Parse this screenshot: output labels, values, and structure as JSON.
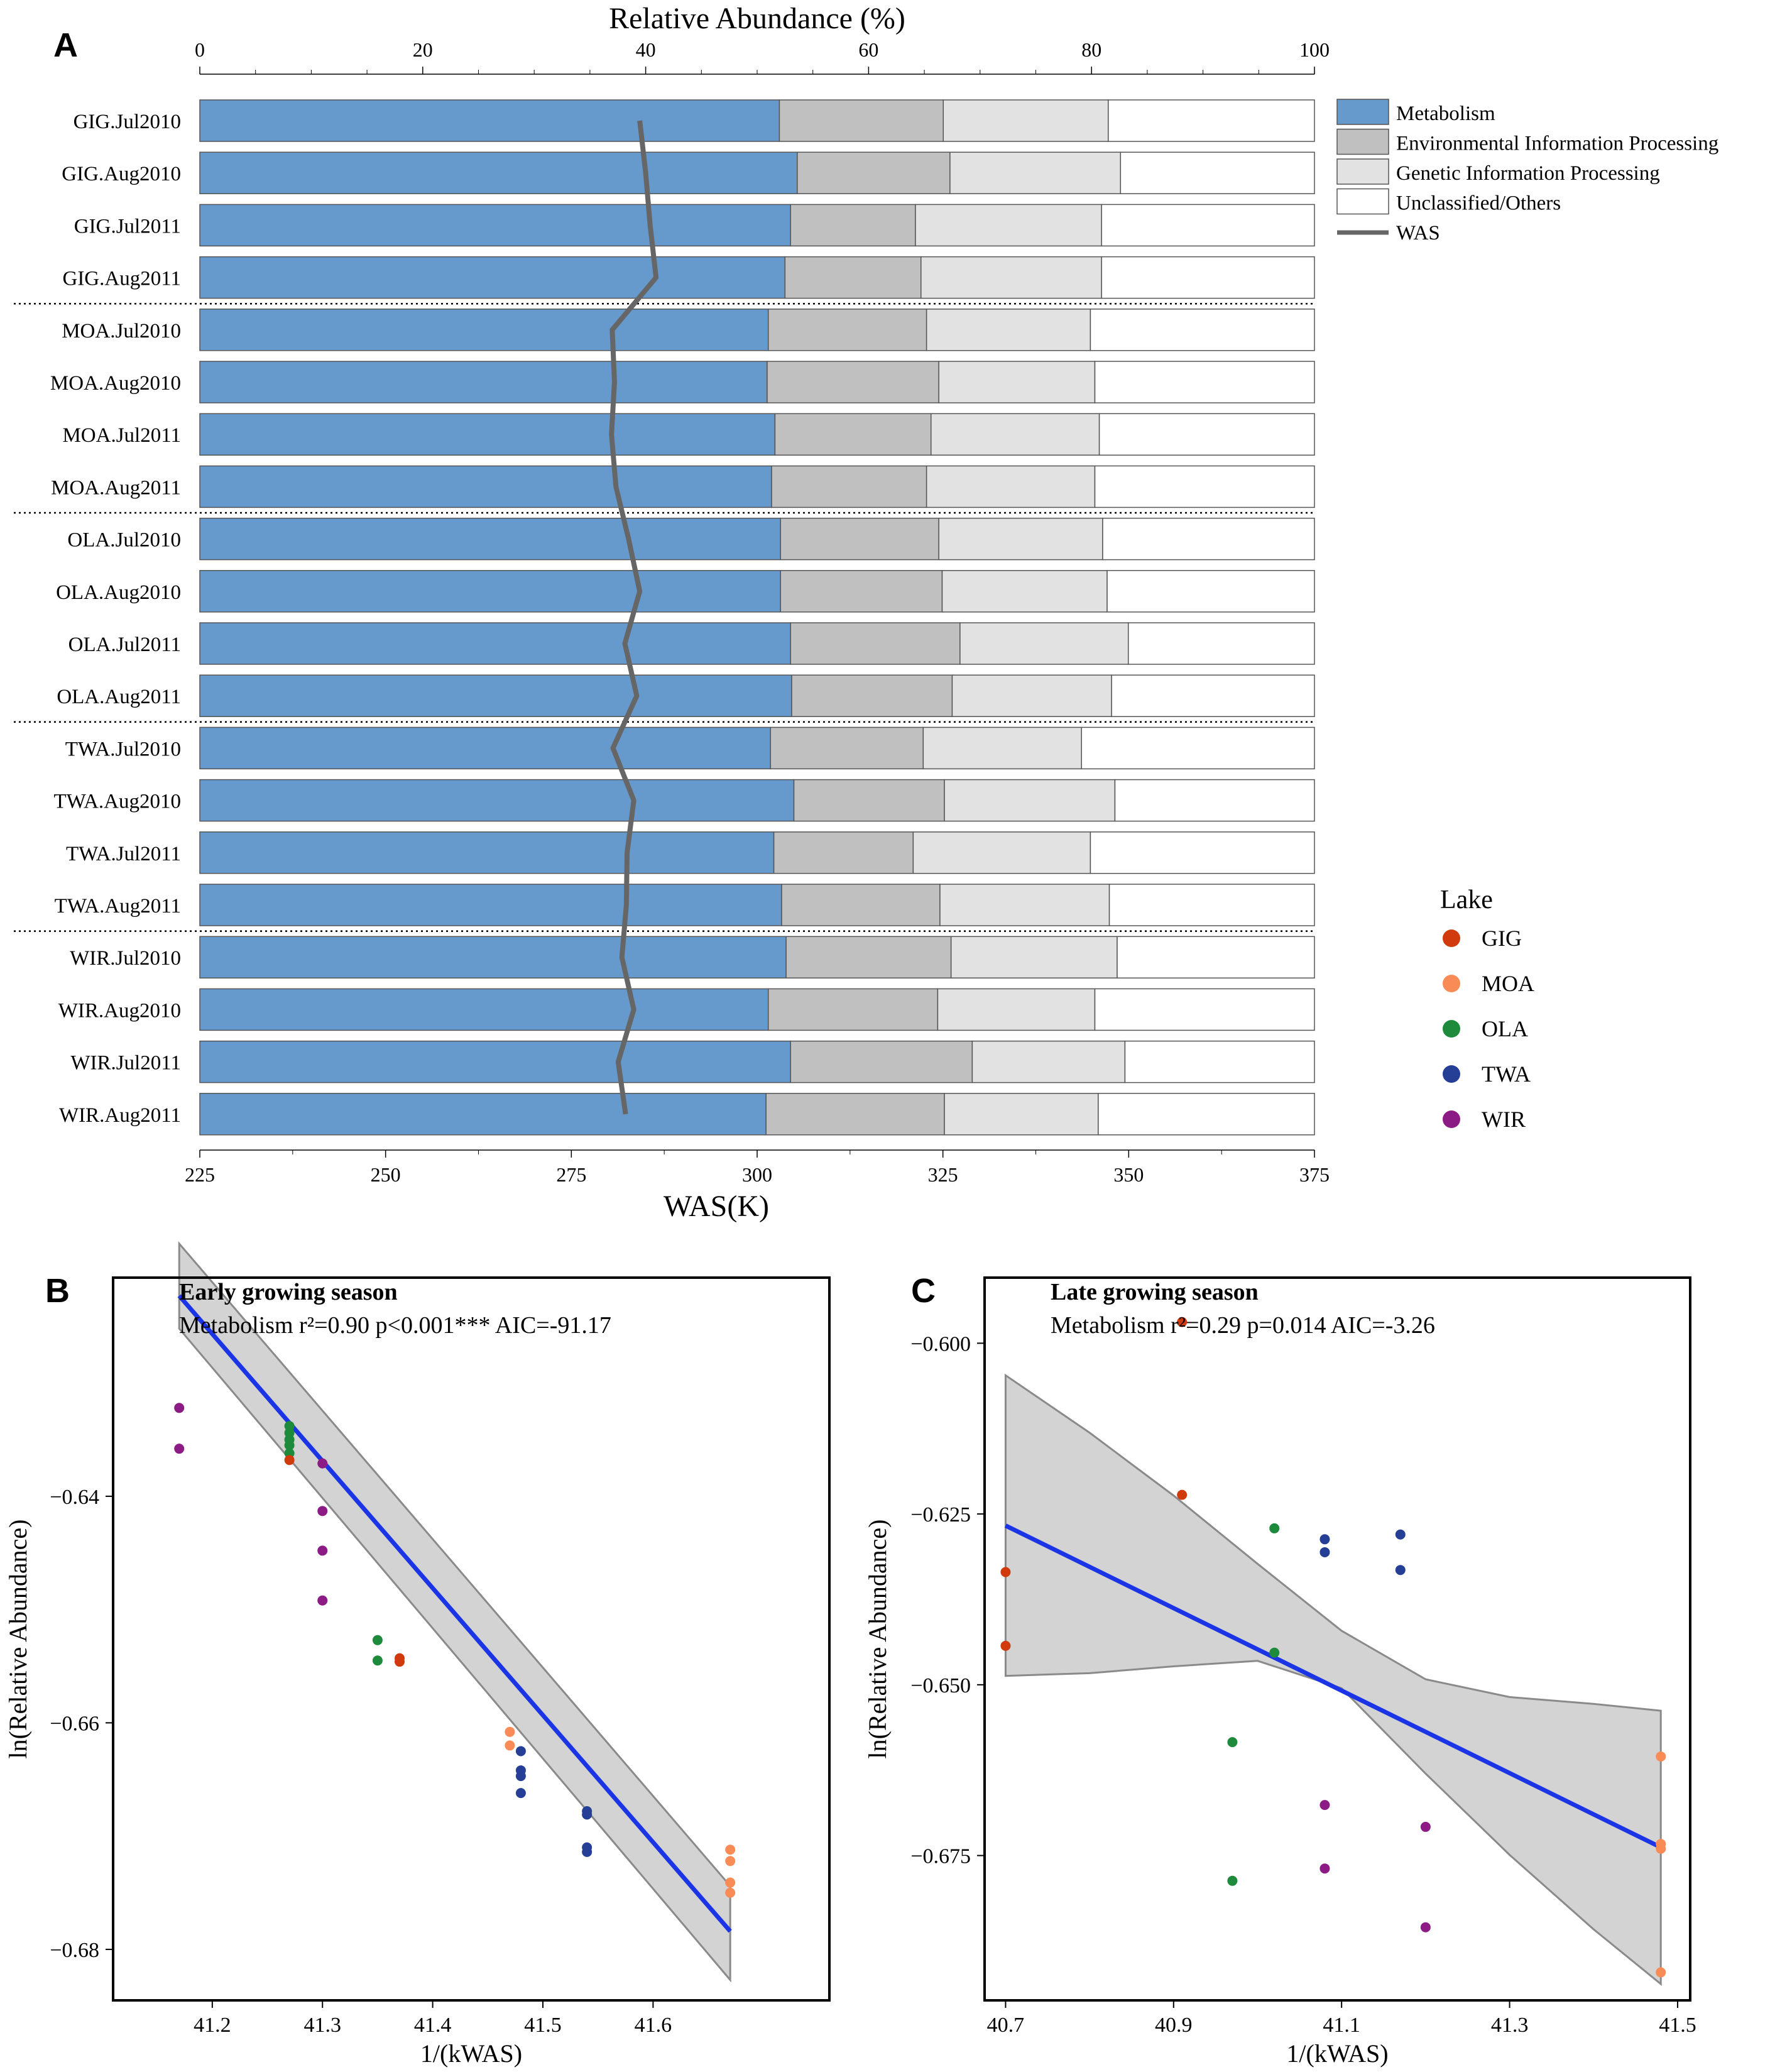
{
  "colors": {
    "metabolism": "#6699cc",
    "env": "#c0c0c0",
    "genetic": "#e2e2e2",
    "unclassified": "#ffffff",
    "was": "#666666",
    "fit_line": "#1a34e6",
    "band": "#d3d3d3",
    "lake": {
      "GIG": "#d13a0c",
      "MOA": "#f98c56",
      "OLA": "#1e8a3c",
      "TWA": "#243f95",
      "WIR": "#8c1b85"
    }
  },
  "chart_data": [
    {
      "panel": "A",
      "type": "bar",
      "stacked": true,
      "orientation": "horizontal",
      "title": "Relative Abundance (%)",
      "xlim": [
        0,
        100
      ],
      "xticks": [
        0,
        20,
        40,
        60,
        80,
        100
      ],
      "secondary_axis": {
        "label": "WAS(K)",
        "xlim": [
          225,
          375
        ],
        "xticks": [
          225,
          250,
          275,
          300,
          325,
          350,
          375
        ]
      },
      "categories": [
        "GIG.Jul2010",
        "GIG.Aug2010",
        "GIG.Jul2011",
        "GIG.Aug2011",
        "MOA.Jul2010",
        "MOA.Aug2010",
        "MOA.Jul2011",
        "MOA.Aug2011",
        "OLA.Jul2010",
        "OLA.Aug2010",
        "OLA.Jul2011",
        "OLA.Aug2011",
        "TWA.Jul2010",
        "TWA.Aug2010",
        "TWA.Jul2011",
        "TWA.Aug2011",
        "WIR.Jul2010",
        "WIR.Aug2010",
        "WIR.Jul2011",
        "WIR.Aug2011"
      ],
      "category_lakes": [
        "GIG",
        "GIG",
        "GIG",
        "GIG",
        "MOA",
        "MOA",
        "MOA",
        "MOA",
        "OLA",
        "OLA",
        "OLA",
        "OLA",
        "TWA",
        "TWA",
        "TWA",
        "TWA",
        "WIR",
        "WIR",
        "WIR",
        "WIR"
      ],
      "series": [
        {
          "name": "Metabolism",
          "values": [
            52.0,
            53.6,
            53.0,
            52.5,
            51.0,
            50.9,
            51.6,
            51.3,
            52.1,
            52.1,
            53.0,
            53.1,
            51.2,
            53.3,
            51.5,
            52.2,
            52.6,
            51.0,
            53.0,
            50.8
          ]
        },
        {
          "name": "Environmental Information Processing",
          "values": [
            14.7,
            13.7,
            11.2,
            12.2,
            14.2,
            15.4,
            14.0,
            13.9,
            14.2,
            14.5,
            15.2,
            14.4,
            13.7,
            13.5,
            12.5,
            14.2,
            14.8,
            15.2,
            16.3,
            16.0
          ]
        },
        {
          "name": "Genetic Information Processing",
          "values": [
            14.8,
            15.3,
            16.7,
            16.2,
            14.7,
            14.0,
            15.1,
            15.1,
            14.7,
            14.8,
            15.1,
            14.3,
            14.2,
            15.3,
            15.9,
            15.2,
            14.9,
            14.1,
            13.7,
            13.8
          ]
        },
        {
          "name": "Unclassified/Others",
          "values": [
            18.5,
            17.4,
            19.1,
            19.1,
            20.1,
            19.7,
            19.3,
            19.7,
            19.0,
            18.6,
            16.7,
            18.2,
            20.9,
            17.9,
            20.1,
            18.4,
            17.7,
            19.7,
            17.0,
            19.4
          ]
        }
      ],
      "was_line": {
        "name": "WAS",
        "values": [
          284.2,
          285.0,
          285.6,
          286.4,
          280.5,
          280.8,
          280.4,
          281.0,
          282.7,
          284.2,
          282.2,
          283.8,
          280.6,
          283.4,
          282.5,
          282.4,
          281.8,
          283.4,
          281.3,
          282.3
        ]
      },
      "legend": [
        "Metabolism",
        "Environmental Information Processing",
        "Genetic Information Processing",
        "Unclassified/Others",
        "WAS"
      ],
      "lake_legend_title": "Lake",
      "lake_legend": [
        "GIG",
        "MOA",
        "OLA",
        "TWA",
        "WIR"
      ]
    },
    {
      "panel": "B",
      "type": "scatter",
      "title": "Early growing season",
      "annotation": "Metabolism r²=0.90 p<0.001*** AIC=-91.17",
      "xlabel": "1/(kWAS)",
      "ylabel": "ln(Relative Abundance)",
      "xlim": [
        41.11,
        41.76
      ],
      "ylim": [
        -0.6845,
        -0.6207
      ],
      "xticks": [
        41.2,
        41.3,
        41.4,
        41.5,
        41.6
      ],
      "xtick_labels": [
        "41.2",
        "41.3",
        "41.4",
        "41.5",
        "41.6"
      ],
      "yticks": [
        -0.64,
        -0.66,
        -0.68
      ],
      "ytick_labels": [
        "−0.64",
        "−0.66",
        "−0.68"
      ],
      "points": [
        {
          "lake": "WIR",
          "x": 41.17,
          "y": -0.6322
        },
        {
          "lake": "WIR",
          "x": 41.17,
          "y": -0.6358
        },
        {
          "lake": "OLA",
          "x": 41.27,
          "y": -0.6338
        },
        {
          "lake": "OLA",
          "x": 41.27,
          "y": -0.6344
        },
        {
          "lake": "OLA",
          "x": 41.27,
          "y": -0.635
        },
        {
          "lake": "OLA",
          "x": 41.27,
          "y": -0.6355
        },
        {
          "lake": "OLA",
          "x": 41.27,
          "y": -0.6362
        },
        {
          "lake": "GIG",
          "x": 41.27,
          "y": -0.6368
        },
        {
          "lake": "WIR",
          "x": 41.3,
          "y": -0.6371
        },
        {
          "lake": "WIR",
          "x": 41.3,
          "y": -0.6413
        },
        {
          "lake": "WIR",
          "x": 41.3,
          "y": -0.6448
        },
        {
          "lake": "WIR",
          "x": 41.3,
          "y": -0.6492
        },
        {
          "lake": "OLA",
          "x": 41.35,
          "y": -0.6527
        },
        {
          "lake": "OLA",
          "x": 41.35,
          "y": -0.6545
        },
        {
          "lake": "GIG",
          "x": 41.37,
          "y": -0.6543
        },
        {
          "lake": "GIG",
          "x": 41.37,
          "y": -0.6546
        },
        {
          "lake": "MOA",
          "x": 41.47,
          "y": -0.6608
        },
        {
          "lake": "MOA",
          "x": 41.47,
          "y": -0.662
        },
        {
          "lake": "TWA",
          "x": 41.48,
          "y": -0.6625
        },
        {
          "lake": "TWA",
          "x": 41.48,
          "y": -0.6642
        },
        {
          "lake": "TWA",
          "x": 41.48,
          "y": -0.6647
        },
        {
          "lake": "TWA",
          "x": 41.48,
          "y": -0.6662
        },
        {
          "lake": "TWA",
          "x": 41.54,
          "y": -0.6678
        },
        {
          "lake": "TWA",
          "x": 41.54,
          "y": -0.6681
        },
        {
          "lake": "TWA",
          "x": 41.54,
          "y": -0.671
        },
        {
          "lake": "TWA",
          "x": 41.54,
          "y": -0.6714
        },
        {
          "lake": "MOA",
          "x": 41.67,
          "y": -0.6712
        },
        {
          "lake": "MOA",
          "x": 41.67,
          "y": -0.6722
        },
        {
          "lake": "MOA",
          "x": 41.67,
          "y": -0.6741
        },
        {
          "lake": "MOA",
          "x": 41.67,
          "y": -0.675
        }
      ],
      "fit": {
        "x": [
          41.17,
          41.67
        ],
        "y": [
          -0.6223,
          -0.6784
        ]
      },
      "band": {
        "x": [
          41.17,
          41.67
        ],
        "upper": [
          -0.6177,
          -0.6744
        ],
        "lower": [
          -0.6252,
          -0.6827
        ]
      }
    },
    {
      "panel": "C",
      "type": "scatter",
      "title": "Late growing season",
      "annotation": "Metabolism r²=0.29 p=0.014 AIC=-3.26",
      "xlabel": "1/(kWAS)",
      "ylabel": "ln(Relative Abundance)",
      "xlim": [
        40.675,
        41.515
      ],
      "ylim": [
        -0.6962,
        -0.5904
      ],
      "xticks": [
        40.7,
        40.9,
        41.1,
        41.3,
        41.5
      ],
      "xtick_labels": [
        "40.7",
        "40.9",
        "41.1",
        "41.3",
        "41.5"
      ],
      "yticks": [
        -0.6,
        -0.625,
        -0.65,
        -0.675
      ],
      "ytick_labels": [
        "−0.600",
        "−0.625",
        "−0.650",
        "−0.675"
      ],
      "points": [
        {
          "lake": "GIG",
          "x": 40.7,
          "y": -0.6335
        },
        {
          "lake": "GIG",
          "x": 40.7,
          "y": -0.6443
        },
        {
          "lake": "GIG",
          "x": 40.91,
          "y": -0.5969
        },
        {
          "lake": "GIG",
          "x": 40.91,
          "y": -0.6222
        },
        {
          "lake": "OLA",
          "x": 41.02,
          "y": -0.6271
        },
        {
          "lake": "OLA",
          "x": 41.02,
          "y": -0.6453
        },
        {
          "lake": "OLA",
          "x": 40.97,
          "y": -0.6584
        },
        {
          "lake": "OLA",
          "x": 40.97,
          "y": -0.6787
        },
        {
          "lake": "TWA",
          "x": 41.08,
          "y": -0.6287
        },
        {
          "lake": "TWA",
          "x": 41.08,
          "y": -0.6306
        },
        {
          "lake": "TWA",
          "x": 41.17,
          "y": -0.628
        },
        {
          "lake": "TWA",
          "x": 41.17,
          "y": -0.6332
        },
        {
          "lake": "WIR",
          "x": 41.08,
          "y": -0.6676
        },
        {
          "lake": "WIR",
          "x": 41.08,
          "y": -0.6769
        },
        {
          "lake": "WIR",
          "x": 41.2,
          "y": -0.6708
        },
        {
          "lake": "WIR",
          "x": 41.2,
          "y": -0.6855
        },
        {
          "lake": "MOA",
          "x": 41.48,
          "y": -0.6605
        },
        {
          "lake": "MOA",
          "x": 41.48,
          "y": -0.6733
        },
        {
          "lake": "MOA",
          "x": 41.48,
          "y": -0.674
        },
        {
          "lake": "MOA",
          "x": 41.48,
          "y": -0.6921
        }
      ],
      "fit": {
        "x": [
          40.7,
          41.48
        ],
        "y": [
          -0.6267,
          -0.6738
        ]
      },
      "band": {
        "x": [
          40.7,
          40.8,
          40.9,
          41.0,
          41.1,
          41.2,
          41.3,
          41.4,
          41.48
        ],
        "upper": [
          -0.6047,
          -0.6131,
          -0.6223,
          -0.6323,
          -0.6421,
          -0.6492,
          -0.6518,
          -0.6528,
          -0.6538
        ],
        "lower": [
          -0.6487,
          -0.6483,
          -0.6473,
          -0.6465,
          -0.6505,
          -0.663,
          -0.6749,
          -0.6858,
          -0.6938
        ]
      }
    }
  ]
}
